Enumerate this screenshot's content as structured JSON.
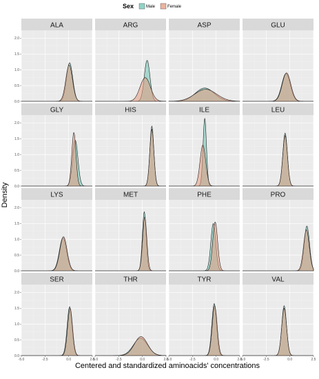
{
  "chart_data": {
    "type": "area",
    "subtype": "density-facets",
    "xlabel": "Centered and standardized aminoacids' concentrations",
    "ylabel": "Density",
    "xlim": [
      -5.0,
      2.5
    ],
    "ylim": [
      0,
      2.25
    ],
    "xticks": [
      "-5.0",
      "-2.5",
      "0.0",
      "2.5"
    ],
    "xtick_values": [
      -5.0,
      -2.5,
      0.0,
      2.5
    ],
    "yticks": [
      "0.0",
      "0.5",
      "1.0",
      "1.5",
      "2.0"
    ],
    "ytick_values": [
      0.0,
      0.5,
      1.0,
      1.5,
      2.0
    ],
    "legend": {
      "title": "Sex",
      "position": "top",
      "entries": [
        {
          "label": "Male",
          "color": "#6cc4b4"
        },
        {
          "label": "Female",
          "color": "#e69a7e"
        }
      ]
    },
    "grid": true,
    "panel_background": "#ebebeb",
    "strip_background": "#d9d9d9",
    "panels": [
      {
        "name": "ALA",
        "series": [
          {
            "name": "Male",
            "mean": 0.1,
            "sd": 0.33,
            "peak": 1.22
          },
          {
            "name": "Female",
            "mean": 0.05,
            "sd": 0.35,
            "peak": 1.15
          }
        ]
      },
      {
        "name": "ARG",
        "series": [
          {
            "name": "Male",
            "mean": 0.5,
            "sd": 0.3,
            "peak": 1.3
          },
          {
            "name": "Female",
            "mean": 0.3,
            "sd": 0.55,
            "peak": 0.75
          }
        ]
      },
      {
        "name": "ASP",
        "series": [
          {
            "name": "Male",
            "mean": -1.2,
            "sd": 1.0,
            "peak": 0.42
          },
          {
            "name": "Female",
            "mean": -1.1,
            "sd": 1.15,
            "peak": 0.38
          }
        ]
      },
      {
        "name": "GLU",
        "series": [
          {
            "name": "Male",
            "mean": -0.4,
            "sd": 0.45,
            "peak": 0.88
          },
          {
            "name": "Female",
            "mean": -0.35,
            "sd": 0.45,
            "peak": 0.9
          }
        ]
      },
      {
        "name": "GLY",
        "series": [
          {
            "name": "Male",
            "mean": 0.7,
            "sd": 0.28,
            "peak": 1.45
          },
          {
            "name": "Female",
            "mean": 0.55,
            "sd": 0.22,
            "peak": 1.7
          }
        ]
      },
      {
        "name": "HIS",
        "series": [
          {
            "name": "Male",
            "mean": 1.0,
            "sd": 0.21,
            "peak": 1.9
          },
          {
            "name": "Female",
            "mean": 1.0,
            "sd": 0.22,
            "peak": 1.8
          }
        ]
      },
      {
        "name": "ILE",
        "series": [
          {
            "name": "Male",
            "mean": -1.2,
            "sd": 0.18,
            "peak": 2.15
          },
          {
            "name": "Female",
            "mean": -1.4,
            "sd": 0.3,
            "peak": 1.3
          }
        ]
      },
      {
        "name": "LEU",
        "series": [
          {
            "name": "Male",
            "mean": -0.5,
            "sd": 0.24,
            "peak": 1.68
          },
          {
            "name": "Female",
            "mean": -0.5,
            "sd": 0.25,
            "peak": 1.6
          }
        ]
      },
      {
        "name": "LYS",
        "series": [
          {
            "name": "Male",
            "mean": -0.6,
            "sd": 0.38,
            "peak": 1.05
          },
          {
            "name": "Female",
            "mean": -0.55,
            "sd": 0.38,
            "peak": 1.08
          }
        ]
      },
      {
        "name": "MET",
        "series": [
          {
            "name": "Male",
            "mean": 0.2,
            "sd": 0.2,
            "peak": 1.87
          },
          {
            "name": "Female",
            "mean": 0.25,
            "sd": 0.22,
            "peak": 1.7
          }
        ]
      },
      {
        "name": "PHE",
        "series": [
          {
            "name": "Male",
            "mean": -0.3,
            "sd": 0.26,
            "peak": 1.5
          },
          {
            "name": "Female",
            "mean": -0.1,
            "sd": 0.26,
            "peak": 1.55
          }
        ]
      },
      {
        "name": "PRO",
        "series": [
          {
            "name": "Male",
            "mean": 1.8,
            "sd": 0.28,
            "peak": 1.42
          },
          {
            "name": "Female",
            "mean": 1.75,
            "sd": 0.3,
            "peak": 1.3
          }
        ]
      },
      {
        "name": "SER",
        "series": [
          {
            "name": "Male",
            "mean": 0.1,
            "sd": 0.26,
            "peak": 1.55
          },
          {
            "name": "Female",
            "mean": 0.15,
            "sd": 0.26,
            "peak": 1.5
          }
        ]
      },
      {
        "name": "THR",
        "series": [
          {
            "name": "Male",
            "mean": -0.2,
            "sd": 0.75,
            "peak": 0.55
          },
          {
            "name": "Female",
            "mean": -0.15,
            "sd": 0.7,
            "peak": 0.6
          }
        ]
      },
      {
        "name": "TYR",
        "series": [
          {
            "name": "Male",
            "mean": -0.2,
            "sd": 0.25,
            "peak": 1.65
          },
          {
            "name": "Female",
            "mean": -0.15,
            "sd": 0.26,
            "peak": 1.58
          }
        ]
      },
      {
        "name": "VAL",
        "series": [
          {
            "name": "Male",
            "mean": -0.6,
            "sd": 0.25,
            "peak": 1.58
          },
          {
            "name": "Female",
            "mean": -0.6,
            "sd": 0.26,
            "peak": 1.5
          }
        ]
      }
    ]
  }
}
